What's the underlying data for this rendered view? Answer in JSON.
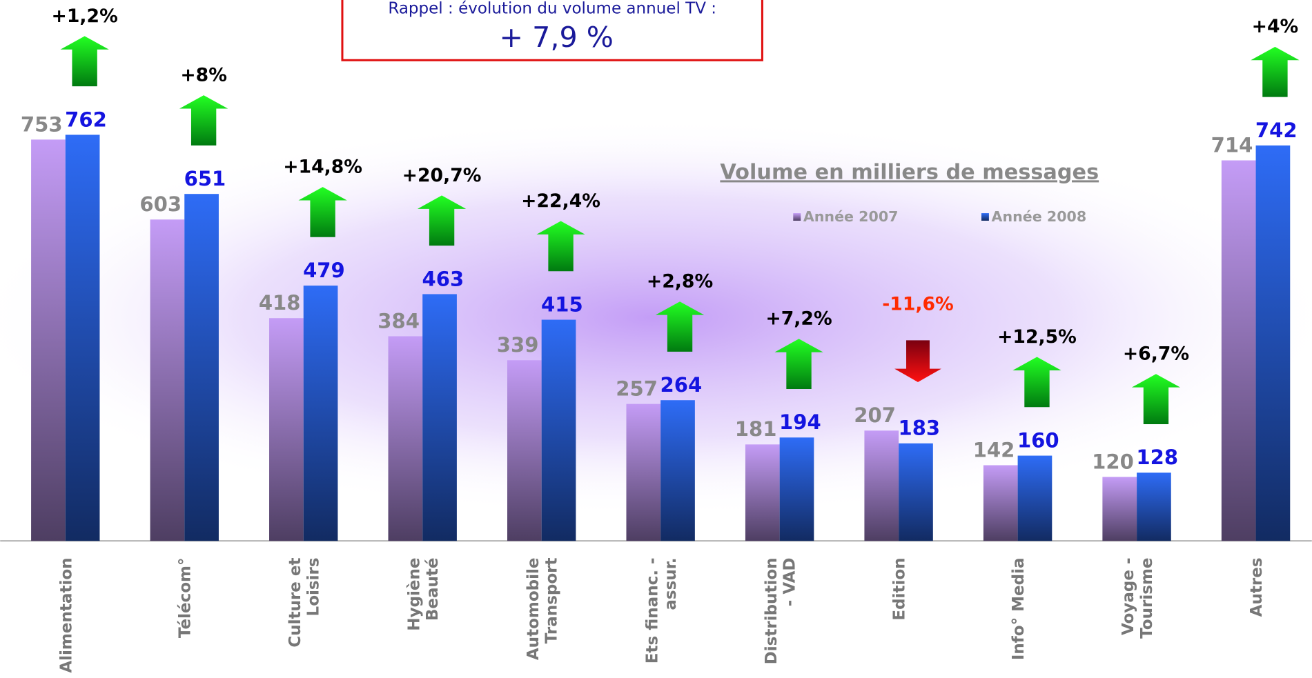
{
  "chart_data": {
    "type": "bar",
    "title": "Rappel : évolution du volume annuel TV :",
    "title_value": "+ 7,9 %",
    "subtitle": "Volume en milliers de messages",
    "categories": [
      "Alimentation",
      "Télécom°",
      "Culture et\nLoisirs",
      "Hygiène\nBeauté",
      "Automobile\nTransport",
      "Ets financ. -\nassur.",
      "Distribution\n- VAD",
      "Edition",
      "Info° Media",
      "Voyage -\nTourisme",
      "Autres"
    ],
    "series": [
      {
        "name": "Année 2007",
        "color": "#c49cf6",
        "values": [
          753,
          603,
          418,
          384,
          339,
          257,
          181,
          207,
          142,
          120,
          714
        ]
      },
      {
        "name": "Année 2008",
        "color": "#2e6cf6",
        "values": [
          762,
          651,
          479,
          463,
          415,
          264,
          194,
          183,
          160,
          128,
          742
        ]
      }
    ],
    "changes": [
      1.2,
      8,
      14.8,
      20.7,
      22.4,
      2.8,
      7.2,
      -11.6,
      12.5,
      6.7,
      4
    ],
    "change_labels": [
      "+1,2%",
      "+8%",
      "+14,8%",
      "+20,7%",
      "+22,4%",
      "+2,8%",
      "+7,2%",
      "-11,6%",
      "+12,5%",
      "+6,7%",
      "+4%"
    ],
    "ylim": [
      0,
      800
    ]
  }
}
